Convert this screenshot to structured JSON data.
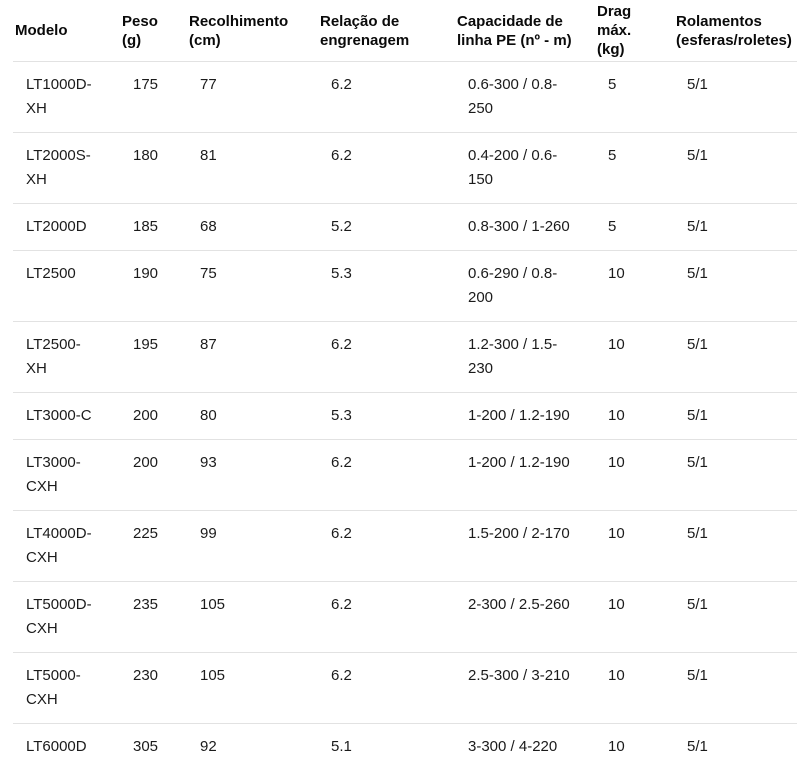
{
  "colors": {
    "background": "#ffffff",
    "body_text": "#1b1b1b",
    "header_text": "#0a0a0a",
    "divider": "#e2e2e2"
  },
  "table": {
    "columns": [
      {
        "key": "modelo",
        "label": "Modelo"
      },
      {
        "key": "peso",
        "label": "Peso (g)"
      },
      {
        "key": "recolhimento",
        "label": "Recolhimento (cm)"
      },
      {
        "key": "relacao",
        "label": "Relação de engrenagem"
      },
      {
        "key": "capacidade",
        "label": "Capacidade de linha PE (nº - m)"
      },
      {
        "key": "drag",
        "label": "Drag máx. (kg)"
      },
      {
        "key": "rolamentos",
        "label": "Rolamentos (esferas/roletes)"
      }
    ],
    "rows": [
      [
        "LT1000D-XH",
        "175",
        "77",
        "6.2",
        "0.6-300 / 0.8-250",
        "5",
        "5/1"
      ],
      [
        "LT2000S-XH",
        "180",
        "81",
        "6.2",
        "0.4-200 / 0.6-150",
        "5",
        "5/1"
      ],
      [
        "LT2000D",
        "185",
        "68",
        "5.2",
        "0.8-300 / 1-260",
        "5",
        "5/1"
      ],
      [
        "LT2500",
        "190",
        "75",
        "5.3",
        "0.6-290 / 0.8-200",
        "10",
        "5/1"
      ],
      [
        "LT2500-XH",
        "195",
        "87",
        "6.2",
        "1.2-300 / 1.5-230",
        "10",
        "5/1"
      ],
      [
        "LT3000-C",
        "200",
        "80",
        "5.3",
        "1-200 / 1.2-190",
        "10",
        "5/1"
      ],
      [
        "LT3000-CXH",
        "200",
        "93",
        "6.2",
        "1-200 / 1.2-190",
        "10",
        "5/1"
      ],
      [
        "LT4000D-CXH",
        "225",
        "99",
        "6.2",
        "1.5-200 / 2-170",
        "10",
        "5/1"
      ],
      [
        "LT5000D-CXH",
        "235",
        "105",
        "6.2",
        "2-300 / 2.5-260",
        "10",
        "5/1"
      ],
      [
        "LT5000-CXH",
        "230",
        "105",
        "6.2",
        "2.5-300 / 3-210",
        "10",
        "5/1"
      ],
      [
        "LT6000D",
        "305",
        "92",
        "5.1",
        "3-300 / 4-220",
        "10",
        "5/1"
      ]
    ]
  }
}
